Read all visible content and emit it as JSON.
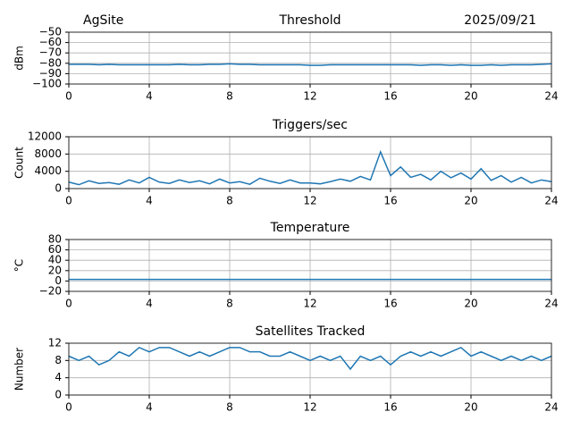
{
  "header": {
    "site": "AgSite",
    "date": "2025/09/21"
  },
  "chart_data": [
    {
      "type": "line",
      "title": "Threshold",
      "ylabel": "dBm",
      "grid": true,
      "xlim": [
        0,
        24
      ],
      "xticks": [
        0,
        4,
        8,
        12,
        16,
        20,
        24
      ],
      "ylim": [
        -100,
        -50
      ],
      "yticks": [
        {
          "value": -100,
          "label": "−100"
        },
        {
          "value": -90,
          "label": "−90"
        },
        {
          "value": -80,
          "label": "−80"
        },
        {
          "value": -70,
          "label": "−70"
        },
        {
          "value": -60,
          "label": "−60"
        },
        {
          "value": -50,
          "label": "−50"
        }
      ],
      "x": [
        0,
        0.5,
        1,
        1.5,
        2,
        2.5,
        3,
        3.5,
        4,
        4.5,
        5,
        5.5,
        6,
        6.5,
        7,
        7.5,
        8,
        8.5,
        9,
        9.5,
        10,
        10.5,
        11,
        11.5,
        12,
        12.5,
        13,
        13.5,
        14,
        14.5,
        15,
        15.5,
        16,
        16.5,
        17,
        17.5,
        18,
        18.5,
        19,
        19.5,
        20,
        20.5,
        21,
        21.5,
        22,
        22.5,
        23,
        23.5,
        24
      ],
      "series": [
        {
          "name": "Threshold",
          "color": "#1f77b4",
          "values": [
            -81,
            -81,
            -81,
            -81.5,
            -81,
            -81.5,
            -81.5,
            -81.5,
            -81.5,
            -81.5,
            -81.5,
            -81,
            -81.5,
            -81.5,
            -81,
            -81,
            -80.5,
            -81,
            -81,
            -81.5,
            -81.5,
            -81.5,
            -81.5,
            -81.5,
            -82,
            -82,
            -81.5,
            -81.5,
            -81.5,
            -81.5,
            -81.5,
            -81.5,
            -81.5,
            -81.5,
            -81.5,
            -82,
            -81.5,
            -81.5,
            -82,
            -81.5,
            -82,
            -82,
            -81.5,
            -82,
            -81.5,
            -81.5,
            -81.5,
            -81,
            -80.5
          ]
        }
      ]
    },
    {
      "type": "line",
      "title": "Triggers/sec",
      "ylabel": "Count",
      "grid": true,
      "xlim": [
        0,
        24
      ],
      "xticks": [
        0,
        4,
        8,
        12,
        16,
        20,
        24
      ],
      "ylim": [
        0,
        12000
      ],
      "yticks": [
        0,
        4000,
        8000,
        12000
      ],
      "x": [
        0,
        0.5,
        1,
        1.5,
        2,
        2.5,
        3,
        3.5,
        4,
        4.5,
        5,
        5.5,
        6,
        6.5,
        7,
        7.5,
        8,
        8.5,
        9,
        9.5,
        10,
        10.5,
        11,
        11.5,
        12,
        12.5,
        13,
        13.5,
        14,
        14.5,
        15,
        15.5,
        16,
        16.5,
        17,
        17.5,
        18,
        18.5,
        19,
        19.5,
        20,
        20.5,
        21,
        21.5,
        22,
        22.5,
        23,
        23.5,
        24
      ],
      "series": [
        {
          "name": "Triggers/sec",
          "color": "#1f77b4",
          "values": [
            1500,
            900,
            1800,
            1200,
            1400,
            1000,
            2000,
            1300,
            2600,
            1500,
            1200,
            2000,
            1400,
            1800,
            1100,
            2200,
            1300,
            1600,
            1000,
            2400,
            1700,
            1200,
            2000,
            1300,
            1300,
            1100,
            1600,
            2200,
            1700,
            2800,
            2000,
            8500,
            3000,
            5000,
            2600,
            3300,
            2000,
            4000,
            2500,
            3600,
            2200,
            4600,
            1900,
            3000,
            1500,
            2600,
            1300,
            2000,
            1600
          ]
        }
      ]
    },
    {
      "type": "line",
      "title": "Temperature",
      "ylabel": "°C",
      "grid": true,
      "xlim": [
        0,
        24
      ],
      "xticks": [
        0,
        4,
        8,
        12,
        16,
        20,
        24
      ],
      "ylim": [
        -20,
        80
      ],
      "yticks": [
        {
          "value": -20,
          "label": "−20"
        },
        0,
        20,
        40,
        60,
        80
      ],
      "x": [
        0,
        24
      ],
      "series": [
        {
          "name": "Temperature",
          "color": "#1f77b4",
          "values": [
            3,
            3
          ]
        }
      ]
    },
    {
      "type": "line",
      "title": "Satellites Tracked",
      "ylabel": "Number",
      "grid": true,
      "xlim": [
        0,
        24
      ],
      "xticks": [
        0,
        4,
        8,
        12,
        16,
        20,
        24
      ],
      "ylim": [
        0,
        12
      ],
      "yticks": [
        0,
        4,
        8,
        12
      ],
      "x": [
        0,
        0.5,
        1,
        1.5,
        2,
        2.5,
        3,
        3.5,
        4,
        4.5,
        5,
        5.5,
        6,
        6.5,
        7,
        7.5,
        8,
        8.5,
        9,
        9.5,
        10,
        10.5,
        11,
        11.5,
        12,
        12.5,
        13,
        13.5,
        14,
        14.5,
        15,
        15.5,
        16,
        16.5,
        17,
        17.5,
        18,
        18.5,
        19,
        19.5,
        20,
        20.5,
        21,
        21.5,
        22,
        22.5,
        23,
        23.5,
        24
      ],
      "series": [
        {
          "name": "Satellites Tracked",
          "color": "#1f77b4",
          "values": [
            9,
            8,
            9,
            7,
            8,
            10,
            9,
            11,
            10,
            11,
            11,
            10,
            9,
            10,
            9,
            10,
            11,
            11,
            10,
            10,
            9,
            9,
            10,
            9,
            8,
            9,
            8,
            9,
            6,
            9,
            8,
            9,
            7,
            9,
            10,
            9,
            10,
            9,
            10,
            11,
            9,
            10,
            9,
            8,
            9,
            8,
            9,
            8,
            9
          ]
        }
      ]
    }
  ]
}
